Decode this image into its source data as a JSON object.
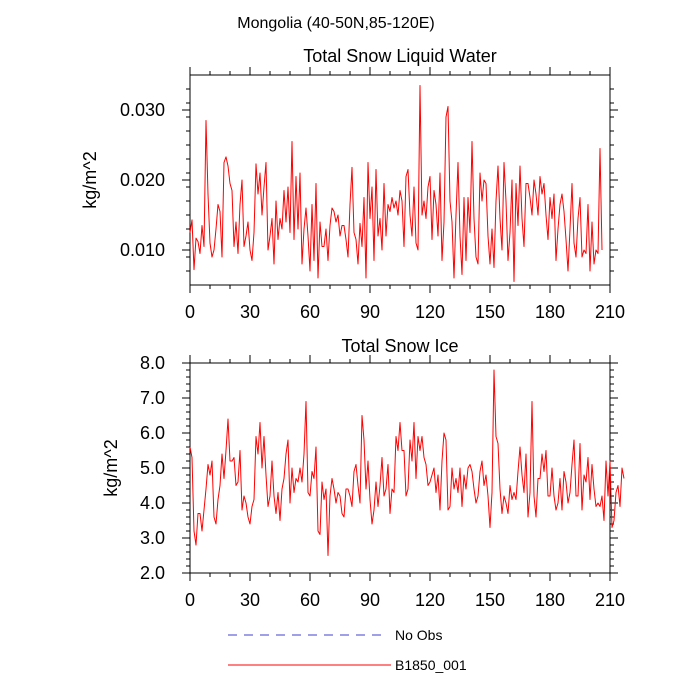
{
  "figure": {
    "main_title": "Mongolia (40-50N,85-120E)"
  },
  "legend": [
    {
      "label": "No Obs",
      "color": "#4040d0",
      "dash": true
    },
    {
      "label": "B1850_001",
      "color": "#ff0000",
      "dash": false
    }
  ],
  "chart_data": [
    {
      "type": "line",
      "title": "Total Snow Liquid Water",
      "xlabel": "",
      "ylabel": "kg/m^2",
      "xlim": [
        0,
        210
      ],
      "ylim": [
        0.005,
        0.035
      ],
      "xticks": [
        0,
        30,
        60,
        90,
        120,
        150,
        180,
        210
      ],
      "xtick_labels": [
        "0",
        "30",
        "60",
        "90",
        "120",
        "150",
        "180",
        "210"
      ],
      "yticks": [
        0.01,
        0.02,
        0.03
      ],
      "ytick_labels": [
        "0.010",
        "0.020",
        "0.030"
      ],
      "series": [
        {
          "name": "B1850_001",
          "color": "#ff0000",
          "x_start": 0,
          "x_step": 1,
          "values": [
            0.0125,
            0.0143,
            0.0072,
            0.0117,
            0.0112,
            0.0095,
            0.0135,
            0.0105,
            0.0285,
            0.018,
            0.011,
            0.009,
            0.01,
            0.013,
            0.0165,
            0.0155,
            0.009,
            0.0225,
            0.0233,
            0.022,
            0.0195,
            0.0185,
            0.0105,
            0.014,
            0.0095,
            0.0165,
            0.02,
            0.0105,
            0.012,
            0.014,
            0.01,
            0.0085,
            0.0125,
            0.0223,
            0.018,
            0.021,
            0.015,
            0.019,
            0.0225,
            0.01,
            0.012,
            0.0145,
            0.008,
            0.017,
            0.0115,
            0.0145,
            0.013,
            0.0185,
            0.014,
            0.019,
            0.0125,
            0.0255,
            0.0115,
            0.0205,
            0.013,
            0.021,
            0.008,
            0.013,
            0.016,
            0.012,
            0.007,
            0.0165,
            0.0085,
            0.0195,
            0.006,
            0.014,
            0.0105,
            0.0105,
            0.013,
            0.0085,
            0.0135,
            0.016,
            0.0155,
            0.014,
            0.015,
            0.012,
            0.0135,
            0.0135,
            0.0115,
            0.009,
            0.0165,
            0.0218,
            0.0125,
            0.0115,
            0.008,
            0.0138,
            0.0105,
            0.0175,
            0.006,
            0.0225,
            0.0145,
            0.019,
            0.0085,
            0.0215,
            0.012,
            0.0145,
            0.01,
            0.0195,
            0.012,
            0.0165,
            0.0155,
            0.0175,
            0.016,
            0.017,
            0.015,
            0.0185,
            0.017,
            0.0105,
            0.0205,
            0.0215,
            0.015,
            0.012,
            0.019,
            0.011,
            0.01,
            0.0335,
            0.015,
            0.017,
            0.0145,
            0.019,
            0.0205,
            0.0115,
            0.0185,
            0.0165,
            0.012,
            0.021,
            0.0085,
            0.014,
            0.029,
            0.0305,
            0.017,
            0.014,
            0.006,
            0.015,
            0.0225,
            0.012,
            0.0065,
            0.0175,
            0.0085,
            0.0175,
            0.0125,
            0.0255,
            0.0145,
            0.009,
            0.008,
            0.021,
            0.017,
            0.02,
            0.0195,
            0.012,
            0.008,
            0.013,
            0.0075,
            0.017,
            0.022,
            0.0145,
            0.01,
            0.0225,
            0.017,
            0.0085,
            0.0125,
            0.02,
            0.0055,
            0.0195,
            0.0135,
            0.022,
            0.0145,
            0.0105,
            0.0195,
            0.0195,
            0.0175,
            0.015,
            0.02,
            0.018,
            0.015,
            0.0205,
            0.018,
            0.0195,
            0.015,
            0.0115,
            0.0175,
            0.0145,
            0.018,
            0.0085,
            0.013,
            0.0165,
            0.018,
            0.0155,
            0.0115,
            0.007,
            0.013,
            0.0195,
            0.011,
            0.009,
            0.0145,
            0.0175,
            0.009,
            0.01,
            0.0095,
            0.0165,
            0.007,
            0.014,
            0.008,
            0.01,
            0.0095,
            0.0245,
            0.01
          ]
        }
      ]
    },
    {
      "type": "line",
      "title": "Total Snow Ice",
      "xlabel": "",
      "ylabel": "kg/m^2",
      "xlim": [
        0,
        210
      ],
      "ylim": [
        2.0,
        8.0
      ],
      "xticks": [
        0,
        30,
        60,
        90,
        120,
        150,
        180,
        210
      ],
      "xtick_labels": [
        "0",
        "30",
        "60",
        "90",
        "120",
        "150",
        "180",
        "210"
      ],
      "yticks": [
        2.0,
        3.0,
        4.0,
        5.0,
        6.0,
        7.0,
        8.0
      ],
      "ytick_labels": [
        "2.0",
        "3.0",
        "4.0",
        "5.0",
        "6.0",
        "7.0",
        "8.0"
      ],
      "series": [
        {
          "name": "B1850_001",
          "color": "#ff0000",
          "x_start": 0,
          "x_step": 1,
          "values": [
            5.6,
            5.3,
            3.2,
            2.8,
            3.7,
            3.7,
            3.2,
            3.8,
            4.4,
            5.1,
            4.8,
            5.2,
            3.6,
            3.4,
            4.1,
            4.5,
            5.4,
            4.7,
            5.5,
            6.4,
            5.2,
            5.2,
            5.3,
            4.5,
            4.6,
            5.5,
            3.8,
            4.2,
            4.0,
            3.6,
            3.4,
            3.9,
            4.1,
            5.9,
            5.4,
            6.3,
            5.0,
            5.9,
            4.8,
            3.9,
            4.2,
            5.2,
            4.2,
            3.7,
            4.3,
            3.5,
            4.4,
            4.7,
            5.4,
            5.8,
            4.0,
            5.0,
            4.3,
            4.7,
            4.6,
            5.0,
            4.6,
            5.4,
            6.9,
            4.3,
            4.2,
            4.9,
            4.7,
            5.6,
            3.2,
            3.1,
            4.6,
            4.1,
            4.4,
            2.5,
            4.2,
            4.7,
            4.4,
            4.0,
            4.3,
            4.2,
            3.7,
            3.6,
            4.4,
            4.4,
            4.2,
            3.9,
            4.9,
            5.1,
            4.5,
            4.0,
            6.5,
            5.8,
            4.4,
            5.2,
            4.1,
            3.4,
            3.8,
            4.6,
            3.9,
            4.5,
            5.3,
            4.2,
            4.4,
            5.1,
            3.7,
            4.4,
            4.3,
            5.9,
            5.5,
            6.3,
            5.5,
            5.5,
            4.2,
            4.4,
            5.8,
            5.2,
            6.3,
            4.7,
            5.9,
            5.5,
            5.9,
            5.3,
            5.1,
            4.5,
            4.6,
            4.8,
            5.0,
            4.3,
            4.8,
            3.8,
            5.2,
            6.0,
            5.8,
            3.8,
            3.9,
            5.0,
            4.4,
            4.7,
            4.3,
            5.0,
            3.9,
            4.8,
            4.4,
            5.0,
            5.1,
            4.9,
            4.4,
            4.0,
            4.2,
            4.9,
            5.2,
            4.5,
            4.8,
            4.2,
            3.3,
            4.3,
            7.8,
            5.9,
            5.7,
            4.4,
            3.7,
            4.2,
            4.0,
            3.7,
            4.5,
            4.1,
            4.3,
            4.1,
            4.9,
            5.6,
            4.8,
            4.3,
            5.4,
            3.6,
            4.3,
            6.9,
            4.2,
            3.6,
            4.7,
            4.7,
            5.4,
            4.9,
            5.5,
            4.2,
            4.2,
            5.0,
            4.2,
            3.8,
            4.0,
            4.7,
            3.8,
            4.9,
            4.6,
            4.0,
            4.3,
            5.1,
            5.8,
            4.2,
            4.2,
            5.7,
            3.8,
            4.8,
            4.6,
            5.3,
            4.1,
            5.1,
            4.4,
            3.9,
            4.0,
            3.9,
            4.2,
            3.5,
            5.2,
            4.2,
            5.2,
            3.3,
            3.5,
            4.3,
            4.5,
            3.9,
            5.0,
            4.7
          ]
        }
      ]
    }
  ]
}
